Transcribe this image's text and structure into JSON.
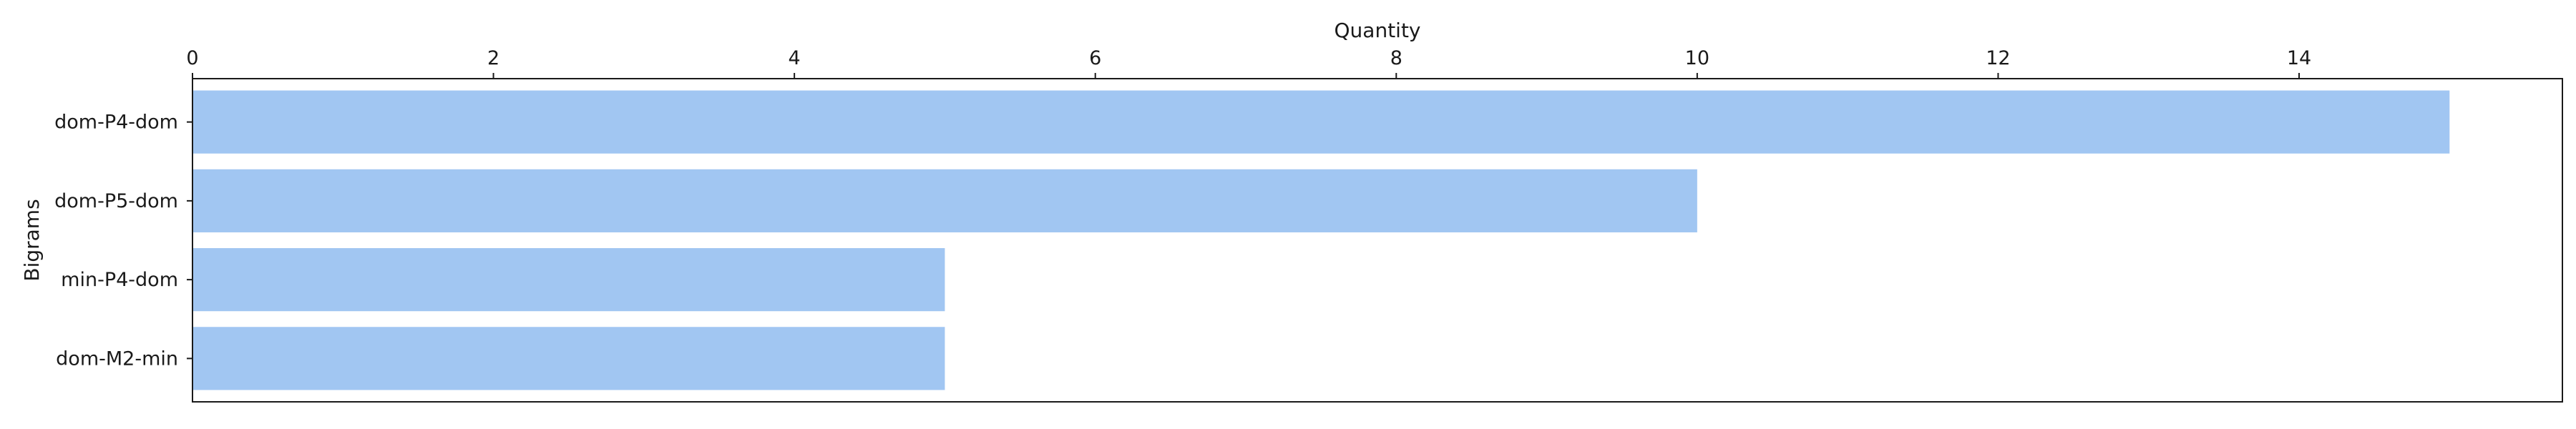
{
  "chart_data": {
    "type": "bar",
    "orientation": "horizontal",
    "xlabel": "Quantity",
    "ylabel": "Bigrams",
    "x_axis_position": "top",
    "categories": [
      "dom-P4-dom",
      "dom-P5-dom",
      "min-P4-dom",
      "dom-M2-min"
    ],
    "values": [
      15,
      10,
      5,
      5
    ],
    "xlim": [
      0,
      15.75
    ],
    "xticks": [
      "0",
      "2",
      "4",
      "6",
      "8",
      "10",
      "12",
      "14"
    ],
    "grid": false,
    "bar_color": "#a1c6f2"
  }
}
